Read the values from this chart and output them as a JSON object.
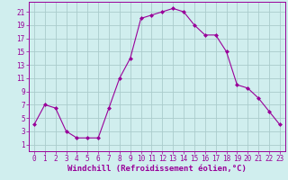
{
  "x": [
    0,
    1,
    2,
    3,
    4,
    5,
    6,
    7,
    8,
    9,
    10,
    11,
    12,
    13,
    14,
    15,
    16,
    17,
    18,
    19,
    20,
    21,
    22,
    23
  ],
  "y": [
    4,
    7,
    6.5,
    3,
    2,
    2,
    2,
    6.5,
    11,
    14,
    20,
    20.5,
    21,
    21.5,
    21,
    19,
    17.5,
    17.5,
    15,
    10,
    9.5,
    8,
    6,
    4
  ],
  "line_color": "#990099",
  "marker": "D",
  "marker_size": 2,
  "bg_color": "#d0eeee",
  "grid_color": "#aacccc",
  "xlabel": "Windchill (Refroidissement éolien,°C)",
  "xlabel_color": "#990099",
  "xlabel_fontsize": 6.5,
  "ylabel_ticks": [
    1,
    3,
    5,
    7,
    9,
    11,
    13,
    15,
    17,
    19,
    21
  ],
  "xlim": [
    -0.5,
    23.5
  ],
  "ylim": [
    0,
    22.5
  ],
  "xtick_fontsize": 5.5,
  "ytick_fontsize": 5.5,
  "tick_color": "#990099",
  "spine_color": "#990099"
}
